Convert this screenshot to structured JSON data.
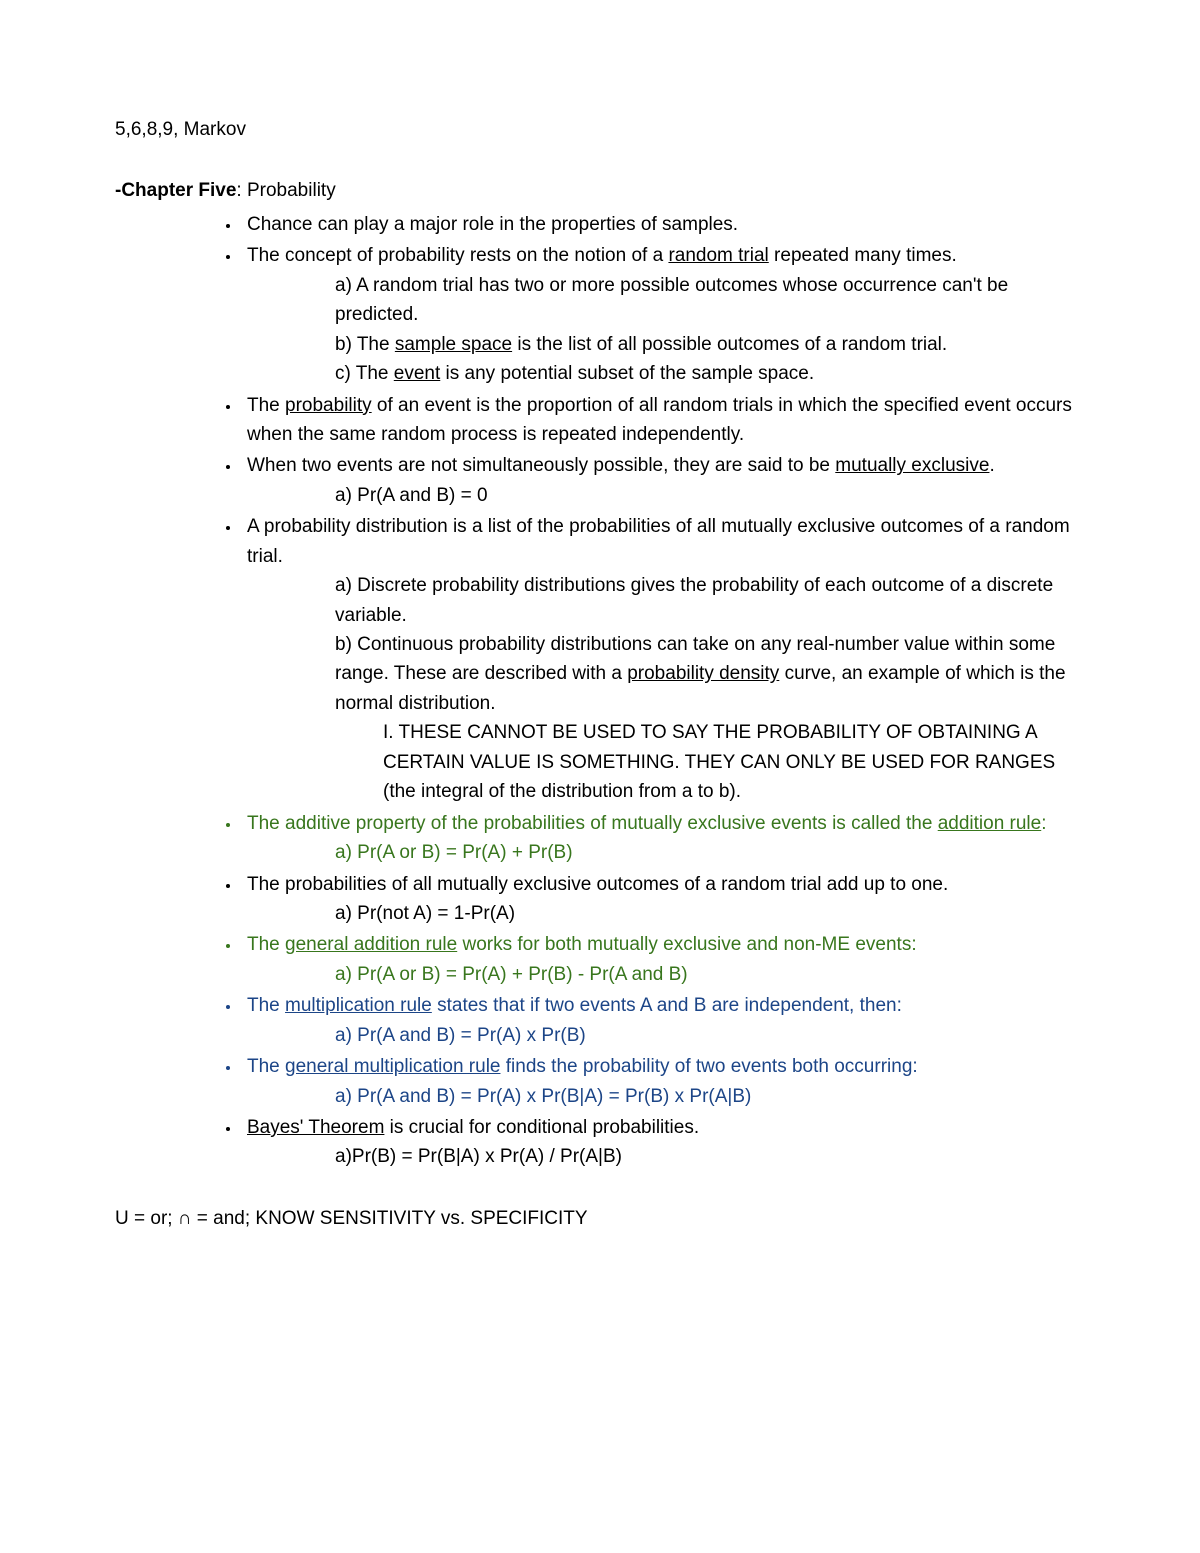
{
  "colors": {
    "text": "#000000",
    "green": "#38761d",
    "blue": "#1c4587",
    "background": "#ffffff"
  },
  "typography": {
    "font_family": "Arial",
    "font_size_pt": 14,
    "line_height": 1.55
  },
  "header": "5,6,8,9, Markov",
  "chapter": {
    "label_bold": "-Chapter Five",
    "label_rest": ": Probability"
  },
  "bullets": {
    "b1": "Chance can play a major role in the properties of samples.",
    "b2_a": "The concept of probability rests on the notion of a ",
    "b2_u": "random trial",
    "b2_b": " repeated many times.",
    "b2_sub_a": "a) A random trial has two or more possible outcomes whose occurrence can't be predicted.",
    "b2_sub_b_a": "b) The ",
    "b2_sub_b_u": "sample space",
    "b2_sub_b_b": " is the list of all possible outcomes of a random trial.",
    "b2_sub_c_a": "c) The ",
    "b2_sub_c_u": "event",
    "b2_sub_c_b": " is any potential subset of the sample space.",
    "b3_a": "The ",
    "b3_u": "probability",
    "b3_b": " of an event is the proportion of all random trials in which the specified event occurs when the same random process is repeated independently.",
    "b4_a": "When two events are not simultaneously possible, they are said to be ",
    "b4_u": "mutually exclusive",
    "b4_b": ".",
    "b4_sub_a": "a) Pr(A and B) = 0",
    "b5": "A probability distribution is a list of the probabilities of all mutually exclusive outcomes of a random trial.",
    "b5_sub_a": "a) Discrete probability distributions gives the probability of each outcome of a discrete variable.",
    "b5_sub_b_a": "b) Continuous probability distributions can take on any real-number value within some range. These are described with a ",
    "b5_sub_b_u": "probability density",
    "b5_sub_b_b": " curve, an example of which is the normal distribution.",
    "b5_sub_b_I": "I. THESE CANNOT BE USED TO SAY THE PROBABILITY OF OBTAINING A CERTAIN VALUE IS SOMETHING. THEY CAN ONLY BE USED FOR RANGES (the integral of the distribution from a to b).",
    "b6_a": "The additive property of the probabilities of mutually exclusive events is called the ",
    "b6_u": "addition rule",
    "b6_b": ":",
    "b6_sub_a": "a) Pr(A or B) = Pr(A) + Pr(B)",
    "b7": "The probabilities of all mutually exclusive outcomes of a random trial add up to one.",
    "b7_sub_a": "a) Pr(not A) = 1-Pr(A)",
    "b8_a": "The ",
    "b8_u": "general addition rule",
    "b8_b": " works for both mutually exclusive and non-ME events:",
    "b8_sub_a": "a) Pr(A or B) = Pr(A) + Pr(B) - Pr(A and B)",
    "b9_a": "The ",
    "b9_u": "multiplication rule",
    "b9_b": " states that if two events A and B are independent, then:",
    "b9_sub_a": "a) Pr(A and B) = Pr(A) x Pr(B)",
    "b10_a": "The ",
    "b10_u": "general multiplication rule",
    "b10_b": " finds the probability of two events both occurring:",
    "b10_sub_a": "a) Pr(A and B) = Pr(A) x Pr(B|A) = Pr(B) x Pr(A|B)",
    "b11_u": "Bayes' Theorem",
    "b11_b": " is crucial for conditional probabilities.",
    "b11_sub_a": "a)Pr(B) = Pr(B|A) x Pr(A) /  Pr(A|B)"
  },
  "footer": "U = or; ∩ = and; KNOW SENSITIVITY vs. SPECIFICITY"
}
